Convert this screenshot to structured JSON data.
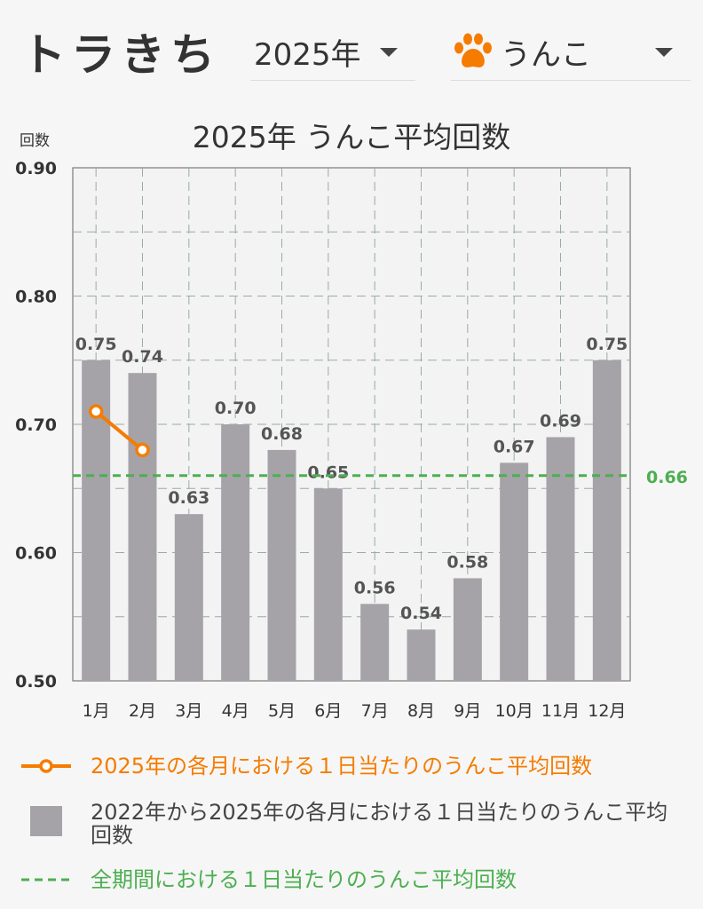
{
  "header": {
    "app_title": "トラきち",
    "year_select": "2025年",
    "kind_select": "うんこ",
    "kind_icon": "paw-icon",
    "accent_color": "#f57c00"
  },
  "chart_data": {
    "type": "bar",
    "title": "2025年 うんこ平均回数",
    "ylabel": "回数",
    "xlabel": "",
    "ylim": [
      0.5,
      0.9
    ],
    "yticks": [
      "0.90",
      "0.80",
      "0.70",
      "0.60",
      "0.50"
    ],
    "categories": [
      "1月",
      "2月",
      "3月",
      "4月",
      "5月",
      "6月",
      "7月",
      "8月",
      "9月",
      "10月",
      "11月",
      "12月"
    ],
    "bars": {
      "name": "2022年から2025年の各月における１日当たりのうんこ平均回数",
      "values": [
        0.75,
        0.74,
        0.63,
        0.7,
        0.68,
        0.65,
        0.56,
        0.54,
        0.58,
        0.67,
        0.69,
        0.75
      ],
      "labels": [
        "0.75",
        "0.74",
        "0.63",
        "0.70",
        "0.68",
        "0.65",
        "0.56",
        "0.54",
        "0.58",
        "0.67",
        "0.69",
        "0.75"
      ],
      "color": "#a5a3a8"
    },
    "line": {
      "name": "2025年の各月における１日当たりのうんこ平均回数",
      "values": [
        0.71,
        0.68
      ],
      "color": "#f57c00"
    },
    "average": {
      "name": "全期間における１日当たりのうんこ平均回数",
      "value": 0.66,
      "label": "0.66",
      "color": "#4caf50"
    },
    "grid": true,
    "legend_position": "bottom"
  }
}
